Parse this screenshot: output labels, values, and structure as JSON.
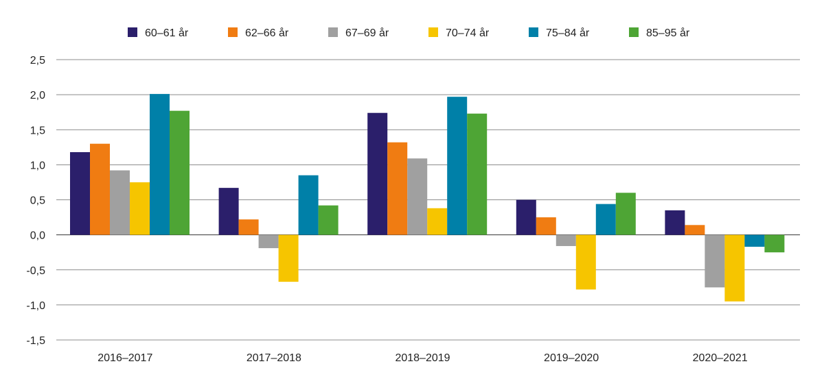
{
  "chart_data": {
    "type": "bar",
    "title": "",
    "xlabel": "",
    "ylabel": "",
    "ylim": [
      -1.5,
      2.5
    ],
    "yticks": [
      2.5,
      2.0,
      1.5,
      1.0,
      0.5,
      0.0,
      -0.5,
      -1.0,
      -1.5
    ],
    "ytick_labels": [
      "2,5",
      "2,0",
      "1,5",
      "1,0",
      "0,5",
      "0,0",
      "-0,5",
      "-1,0",
      "-1,5"
    ],
    "grid": true,
    "legend": "top",
    "categories": [
      "2016–2017",
      "2017–2018",
      "2018–2019",
      "2019–2020",
      "2020–2021"
    ],
    "series": [
      {
        "name": "60–61 år",
        "color": "#2b1f6b",
        "values": [
          1.18,
          0.67,
          1.74,
          0.5,
          0.35
        ]
      },
      {
        "name": "62–66 år",
        "color": "#f07c12",
        "values": [
          1.3,
          0.22,
          1.32,
          0.25,
          0.14
        ]
      },
      {
        "name": "67–69 år",
        "color": "#a0a0a0",
        "values": [
          0.92,
          -0.19,
          1.09,
          -0.16,
          -0.75
        ]
      },
      {
        "name": "70–74 år",
        "color": "#f6c500",
        "values": [
          0.75,
          -0.67,
          0.38,
          -0.78,
          -0.95
        ]
      },
      {
        "name": "75–84 år",
        "color": "#0080a8",
        "values": [
          2.01,
          0.85,
          1.97,
          0.44,
          -0.17
        ]
      },
      {
        "name": "85–95 år",
        "color": "#4ea535",
        "values": [
          1.77,
          0.42,
          1.73,
          0.6,
          -0.25
        ]
      }
    ]
  }
}
